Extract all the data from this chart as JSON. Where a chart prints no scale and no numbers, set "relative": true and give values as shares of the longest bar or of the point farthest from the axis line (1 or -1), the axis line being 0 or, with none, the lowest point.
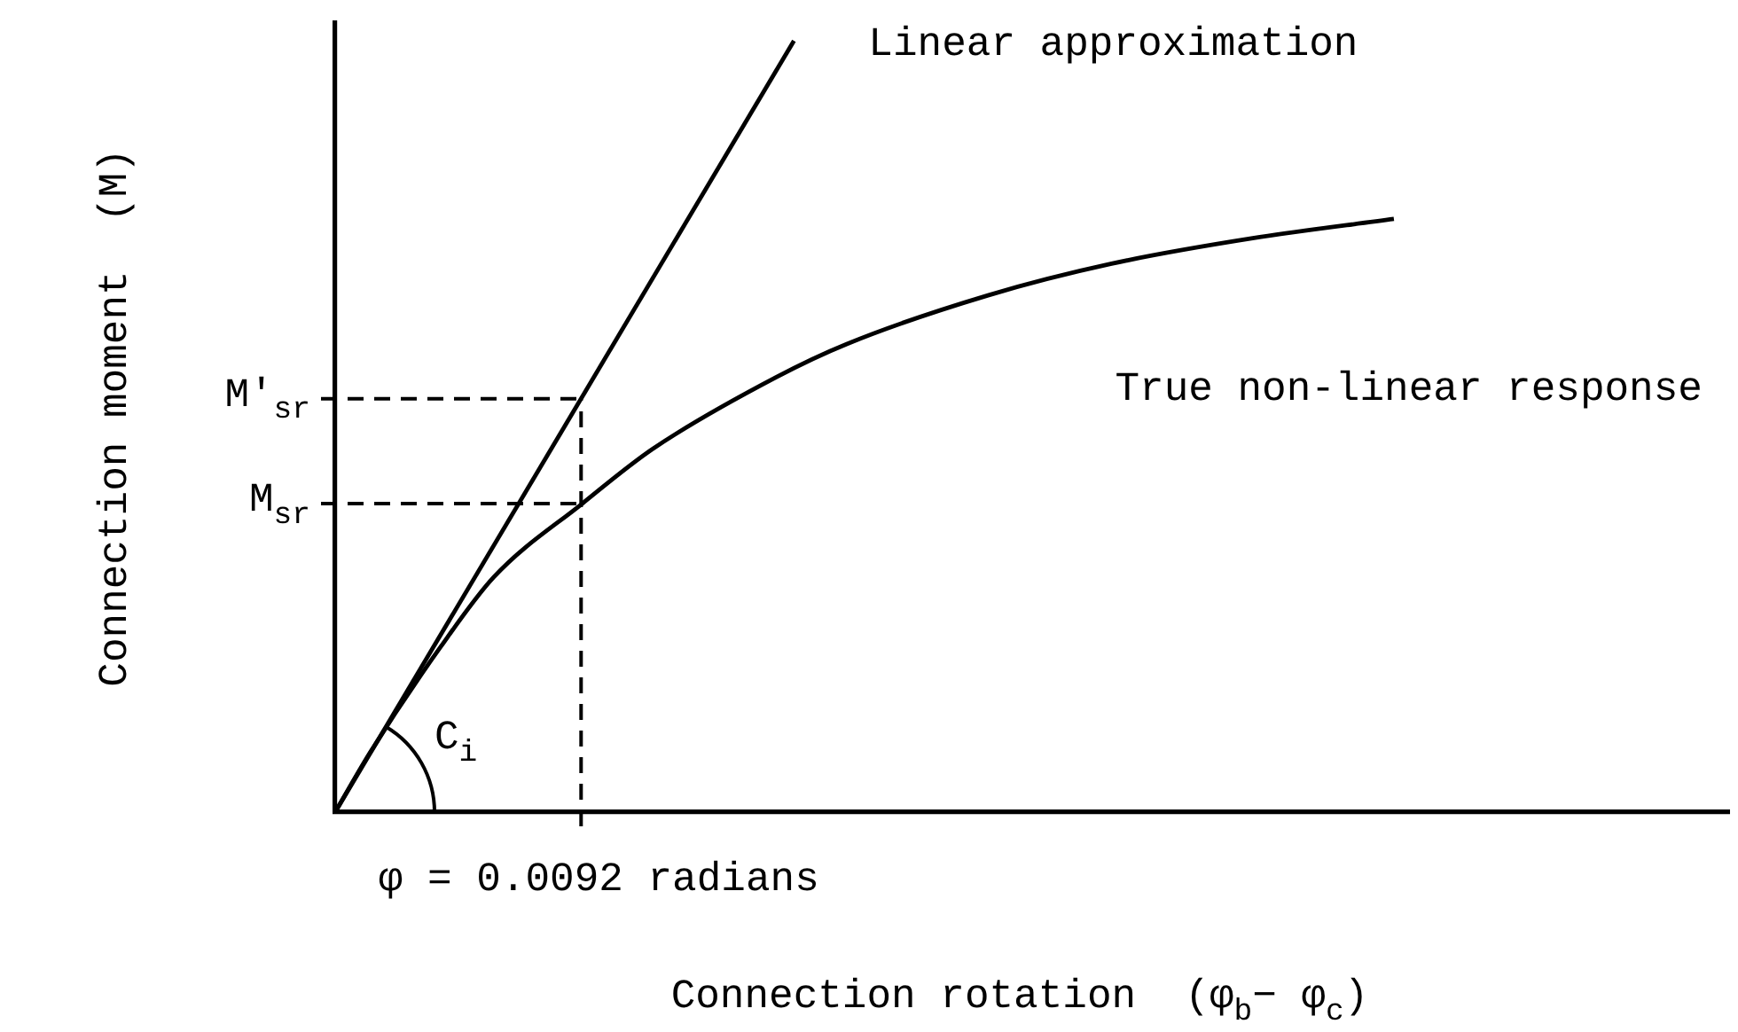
{
  "chart_data": {
    "type": "line",
    "relative": true,
    "xlabel": "Connection rotation  (φ$_{b}$− φ$_{c}$)",
    "ylabel": "Connection moment  (M)",
    "legend": false,
    "marker": "none",
    "line_style": "solid",
    "categories": [
      null,
      null,
      null,
      null,
      null,
      null,
      null,
      null,
      null,
      null,
      null,
      null,
      null,
      null,
      null,
      null,
      null,
      null,
      null,
      null,
      null,
      null,
      null,
      null,
      null,
      null,
      null,
      null,
      null,
      null,
      null,
      null,
      null,
      null,
      null,
      null,
      null,
      null,
      null,
      null,
      null,
      null,
      null,
      null,
      null,
      null,
      null,
      null,
      null,
      null,
      null,
      null,
      null,
      null,
      null,
      null,
      null,
      null,
      null,
      null,
      null,
      null,
      null,
      null,
      null,
      null,
      null,
      null,
      null,
      null,
      null,
      null,
      null,
      null,
      null,
      null,
      null,
      null,
      null,
      null
    ],
    "series": [
      {
        "name": "Linear approximation",
        "color": "#000000",
        "values": [
          0,
          null,
          null,
          null,
          null,
          null,
          null,
          null,
          null,
          null,
          null,
          null,
          null,
          null,
          null,
          null,
          null,
          null,
          null,
          null,
          null,
          null,
          null,
          null,
          null,
          null,
          1,
          null,
          null,
          null,
          null,
          null,
          null,
          null,
          null,
          null,
          null,
          null,
          null,
          null,
          null,
          null,
          null,
          null,
          null,
          null,
          null,
          null,
          null,
          null,
          null,
          null,
          null,
          null,
          null,
          null,
          null,
          null,
          null,
          null,
          null,
          null,
          null,
          null,
          null,
          null,
          null,
          null,
          null,
          null,
          null,
          null,
          null,
          null,
          null,
          null,
          null,
          null,
          null,
          null
        ]
      },
      {
        "name": "True non-linear response",
        "color": "#000000",
        "values": [
          0,
          null,
          0.078,
          null,
          null,
          null,
          0.215,
          null,
          null,
          0.305,
          null,
          null,
          null,
          null,
          0.4,
          null,
          null,
          null,
          0.471,
          null,
          null,
          null,
          null,
          null,
          null,
          0.564,
          null,
          null,
          null,
          0.607,
          null,
          null,
          null,
          null,
          null,
          null,
          null,
          0.67,
          null,
          null,
          null,
          null,
          null,
          null,
          0.711,
          null,
          null,
          null,
          null,
          null,
          null,
          null,
          0.744,
          null,
          null,
          null,
          null,
          null,
          null,
          null,
          0.769,
          null,
          null,
          null,
          null,
          null,
          null,
          null,
          null,
          null,
          null,
          null,
          null,
          null,
          null,
          null,
          null,
          null,
          null,
          null
        ]
      }
    ],
    "ref_lines": [
      {
        "axis": "y",
        "value": 0.536,
        "label": "M′$_{sr}$",
        "line_style": "dashed"
      },
      {
        "axis": "y",
        "value": 0.4,
        "label": "M$_{sr}$",
        "line_style": "dashed"
      }
    ],
    "annotations": [
      "φ = 0.0092 radians",
      "C$_{i}$"
    ]
  }
}
